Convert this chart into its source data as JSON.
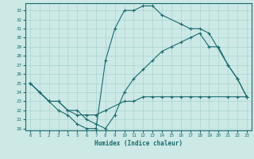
{
  "xlabel": "Humidex (Indice chaleur)",
  "bg_color": "#cce9e6",
  "line_color": "#1a6b6b",
  "grid_color": "#aad4d0",
  "xlim": [
    -0.5,
    23.5
  ],
  "ylim": [
    19.8,
    33.8
  ],
  "xticks": [
    0,
    1,
    2,
    3,
    4,
    5,
    6,
    7,
    8,
    9,
    10,
    11,
    12,
    13,
    14,
    15,
    16,
    17,
    18,
    19,
    20,
    21,
    22,
    23
  ],
  "yticks": [
    20,
    21,
    22,
    23,
    24,
    25,
    26,
    27,
    28,
    29,
    30,
    31,
    32,
    33
  ],
  "curve1_x": [
    0,
    1,
    2,
    3,
    4,
    5,
    6,
    7,
    8,
    10,
    11,
    12,
    13,
    14,
    15,
    16,
    17,
    18,
    19,
    21,
    22,
    23
  ],
  "curve1_y": [
    25.0,
    24.0,
    23.0,
    23.0,
    22.0,
    21.5,
    21.5,
    21.5,
    22.0,
    23.0,
    23.0,
    23.5,
    23.5,
    23.5,
    23.5,
    23.5,
    23.5,
    23.5,
    23.5,
    23.5,
    23.5,
    23.5
  ],
  "curve2_x": [
    0,
    2,
    3,
    4,
    5,
    6,
    7,
    8,
    9,
    10,
    11,
    12,
    13,
    14,
    15,
    16,
    17,
    18,
    19,
    20,
    21,
    22,
    23
  ],
  "curve2_y": [
    25.0,
    23.0,
    23.0,
    22.0,
    22.0,
    21.0,
    20.5,
    20.0,
    21.5,
    24.0,
    25.5,
    26.5,
    27.5,
    28.5,
    29.0,
    29.5,
    30.0,
    30.5,
    29.0,
    29.0,
    27.0,
    25.5,
    23.5
  ],
  "curve3_x": [
    0,
    1,
    2,
    3,
    4,
    5,
    6,
    7,
    8,
    9,
    10,
    11,
    12,
    13,
    14,
    16,
    17,
    18,
    19,
    21,
    22,
    23
  ],
  "curve3_y": [
    25.0,
    24.0,
    23.0,
    22.0,
    21.5,
    20.5,
    20.0,
    20.0,
    27.5,
    31.0,
    33.0,
    33.0,
    33.5,
    33.5,
    32.5,
    31.5,
    31.0,
    31.0,
    30.5,
    27.0,
    25.5,
    23.5
  ]
}
